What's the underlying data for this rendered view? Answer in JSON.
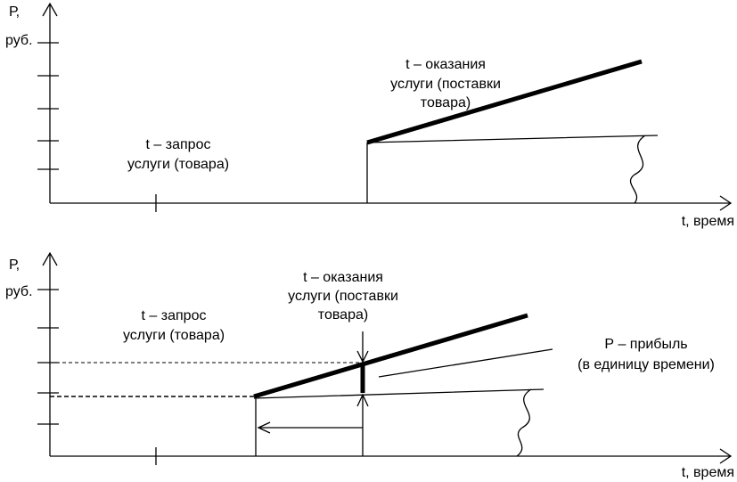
{
  "diagrams": [
    {
      "y_label": [
        "Р,",
        "руб."
      ],
      "x_label": "t, время",
      "request_label": [
        "t – запрос",
        "услуги (товара)"
      ],
      "service_label": [
        "t – оказания",
        "услуги (поставки",
        "товара)"
      ]
    },
    {
      "y_label": [
        "Р,",
        "руб."
      ],
      "x_label": "t, время",
      "request_label": [
        "t – запрос",
        "услуги (товара)"
      ],
      "service_label": [
        "t – оказания",
        "услуги (поставки",
        "товара)"
      ],
      "profit_label": [
        "Р – прибыль",
        "(в единицу времени)"
      ]
    }
  ]
}
